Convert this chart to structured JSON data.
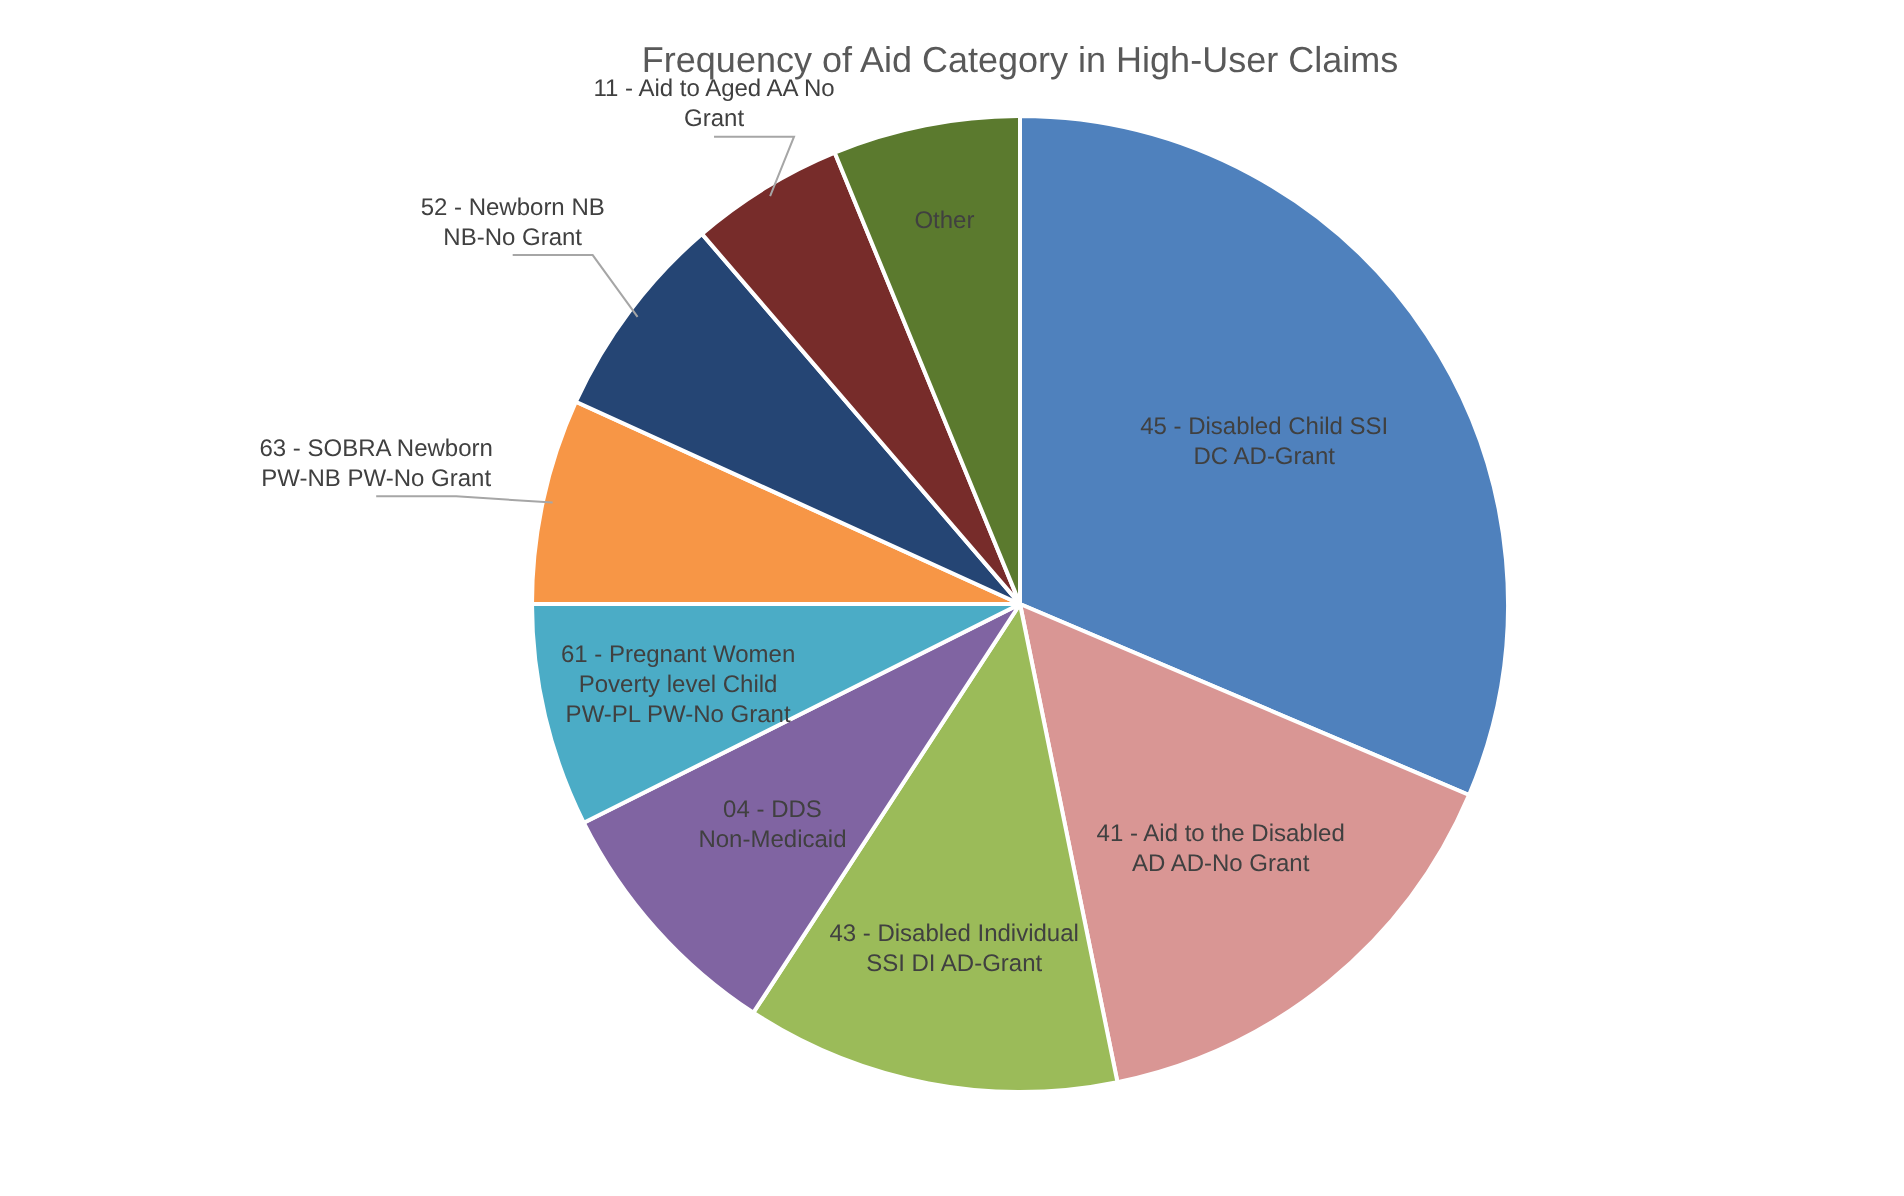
{
  "chart_data": {
    "type": "pie",
    "title": "Frequency of Aid Category in High-User Claims",
    "categories": [
      "45 - Disabled Child SSI DC AD-Grant",
      "41 - Aid to the Disabled AD AD-No Grant",
      "43 - Disabled Individual SSI DI AD-Grant",
      "04 - DDS Non-Medicaid",
      "61 - Pregnant Women Poverty level Child PW-PL PW-No Grant",
      "63 - SOBRA Newborn PW-NB PW-No Grant",
      "52 - Newborn NB NB-No Grant",
      "11 - Aid to Aged AA No Grant",
      "Other"
    ],
    "values": [
      31.4,
      15.4,
      12.4,
      8.4,
      7.4,
      6.8,
      6.9,
      5.1,
      6.2
    ],
    "colors": [
      "#4f81bd",
      "#d99694",
      "#9bbb59",
      "#8064a2",
      "#4bacc6",
      "#f79646",
      "#254574",
      "#772c2a",
      "#5b7a2e"
    ],
    "legend": false
  }
}
